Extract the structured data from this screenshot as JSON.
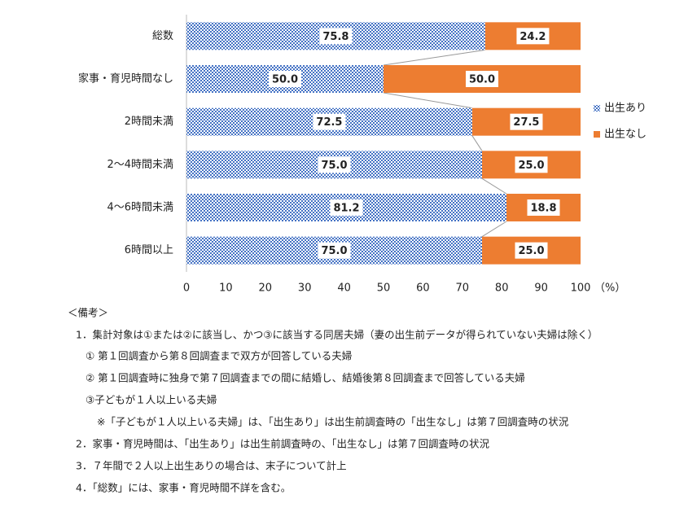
{
  "chart_data": {
    "type": "stacked-barh",
    "categories": [
      "総数",
      "家事・育児時間なし",
      "2時間未満",
      "2～4時間未満",
      "4～6時間未満",
      "6時間以上"
    ],
    "series": [
      {
        "name": "出生あり",
        "color": "#4472c4",
        "pattern": "checker",
        "values": [
          75.8,
          50.0,
          72.5,
          75.0,
          81.2,
          75.0
        ],
        "value_labels": [
          "75.8",
          "50.0",
          "72.5",
          "75.0",
          "81.2",
          "75.0"
        ]
      },
      {
        "name": "出生なし",
        "color": "#ed7d31",
        "values": [
          24.2,
          50.0,
          27.5,
          25.0,
          18.8,
          25.0
        ],
        "value_labels": [
          "24.2",
          "50.0",
          "27.5",
          "25.0",
          "18.8",
          "25.0"
        ]
      }
    ],
    "xlim": [
      0,
      100
    ],
    "xticks": [
      0,
      10,
      20,
      30,
      40,
      50,
      60,
      70,
      80,
      90,
      100
    ],
    "xlabel": "（%）",
    "legend": "right",
    "series_lines": true,
    "notes": [
      "＜備考＞",
      "1．集計対象は①または②に該当し、かつ③に該当する同居夫婦（妻の出生前データが得られていない夫婦は除く）",
      "① 第１回調査から第８回調査まで双方が回答している夫婦",
      "② 第１回調査時に独身で第７回調査までの間に結婚し、結婚後第８回調査まで回答している夫婦",
      "③子どもが１人以上いる夫婦",
      "※「子どもが１人以上いる夫婦」は、「出生あり」は出生前調査時の「出生なし」は第７回調査時の状況",
      "2．家事・育児時間は、「出生あり」は出生前調査時の、「出生なし」は第７回調査時の状況",
      "3．７年間で２人以上出生ありの場合は、末子について計上",
      "4．「総数」には、家事・育児時間不詳を含む。"
    ]
  }
}
